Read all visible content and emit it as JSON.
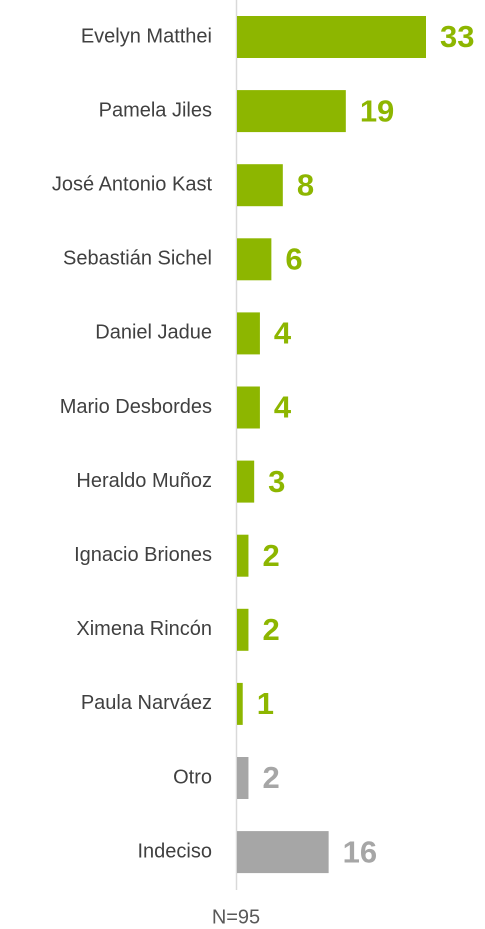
{
  "chart_data": {
    "type": "barh",
    "categories": [
      "Evelyn Matthei",
      "Pamela Jiles",
      "José Antonio Kast",
      "Sebastián Sichel",
      "Daniel Jadue",
      "Mario Desbordes",
      "Heraldo Muñoz",
      "Ignacio Briones",
      "Ximena Rincón",
      "Paula Narváez",
      "Otro",
      "Indeciso"
    ],
    "values": [
      33,
      19,
      8,
      6,
      4,
      4,
      3,
      2,
      2,
      1,
      2,
      16
    ],
    "colors": [
      "#8db600",
      "#8db600",
      "#8db600",
      "#8db600",
      "#8db600",
      "#8db600",
      "#8db600",
      "#8db600",
      "#8db600",
      "#8db600",
      "#a6a6a6",
      "#a6a6a6"
    ],
    "xlim": [
      0,
      33
    ],
    "note": "N=95"
  }
}
